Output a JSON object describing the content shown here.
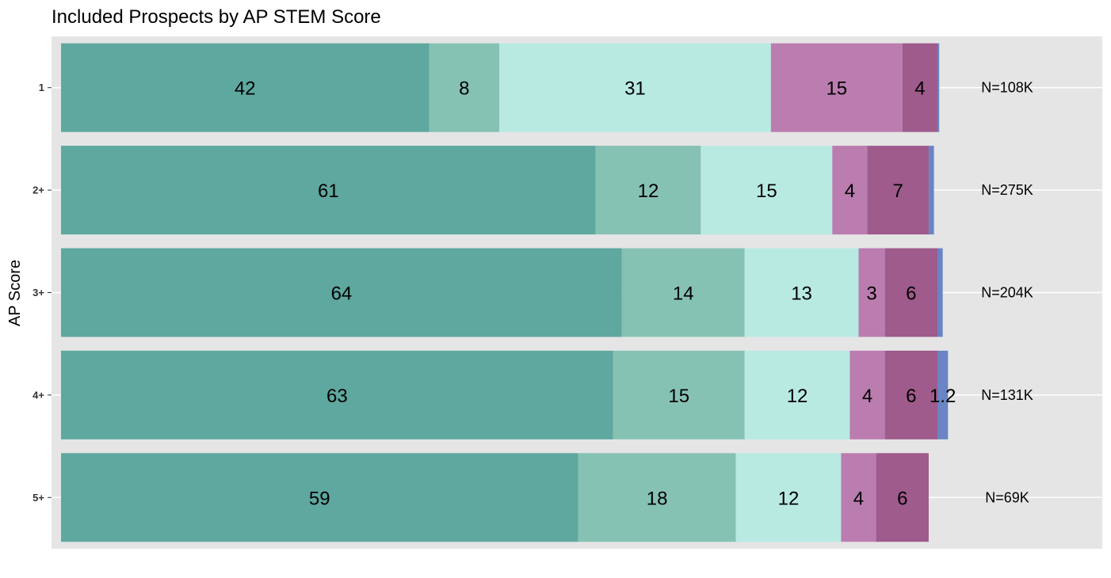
{
  "chart_data": {
    "type": "bar",
    "orientation": "horizontal",
    "stacked": true,
    "title": "Included Prospects by AP STEM Score",
    "ylabel": "AP Score",
    "xlabel": "",
    "categories": [
      "1",
      "2+",
      "3+",
      "4+",
      "5+"
    ],
    "series": [
      {
        "values": [
          42,
          61,
          64,
          63,
          59
        ],
        "color": "#5ea89f"
      },
      {
        "values": [
          8,
          12,
          14,
          15,
          18
        ],
        "color": "#86c2b3"
      },
      {
        "values": [
          31,
          15,
          13,
          12,
          12
        ],
        "color": "#b8eae2"
      },
      {
        "values": [
          15,
          4,
          3,
          4,
          4
        ],
        "color": "#bb7db0"
      },
      {
        "values": [
          4,
          7,
          6,
          6,
          6
        ],
        "color": "#9e5b8c"
      },
      {
        "values": [
          0.2,
          0.6,
          0.6,
          1.2,
          0
        ],
        "color": "#6a84c4"
      }
    ],
    "n_labels": [
      "N=108K",
      "N=275K",
      "N=204K",
      "N=131K",
      "N=69K"
    ],
    "xlim": [
      0,
      100
    ],
    "panel_background": "#e5e5e5",
    "grid": true,
    "legend": "none"
  }
}
